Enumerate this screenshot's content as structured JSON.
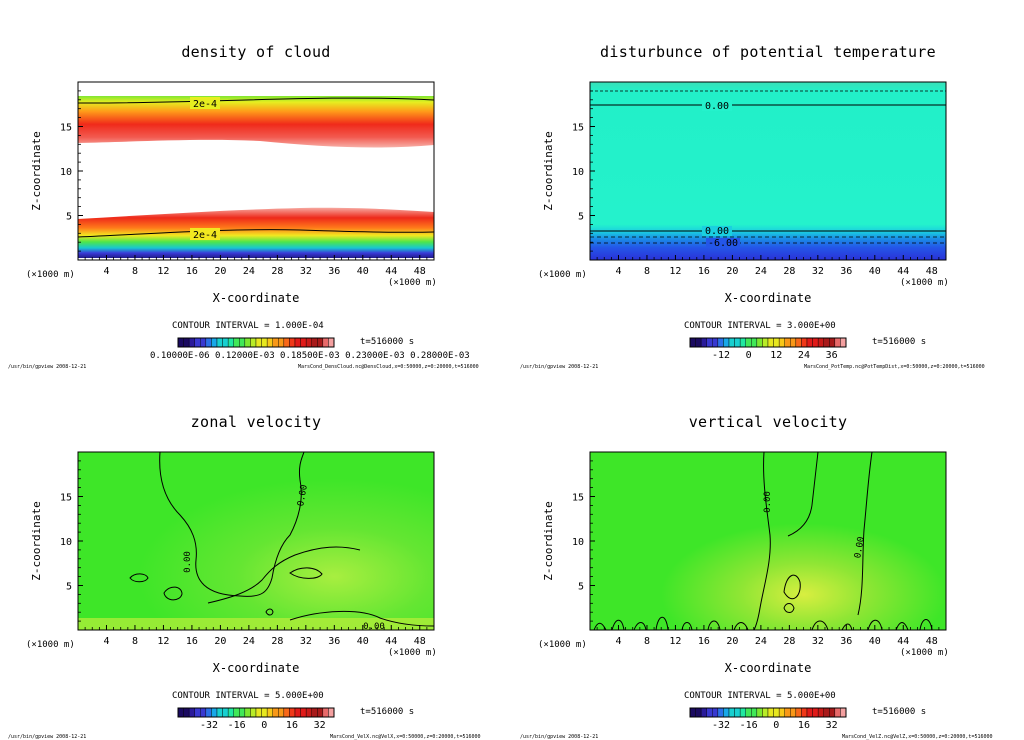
{
  "colors": {
    "frame": "#000000",
    "background": "#ffffff"
  },
  "panels": [
    {
      "id": "density",
      "title": "density of cloud",
      "ylabel": "Z-coordinate",
      "xlabel": "X-coordinate",
      "x_unit_left": "(×1000 m)",
      "x_unit_right": "(×1000 m)",
      "xticks": [
        "4",
        "8",
        "12",
        "16",
        "20",
        "24",
        "28",
        "32",
        "36",
        "40",
        "44",
        "48"
      ],
      "yticks": [
        "5",
        "10",
        "15"
      ],
      "contour_labels": [
        "2e-4",
        "2e-4"
      ],
      "contour_interval": "CONTOUR INTERVAL = 1.000E-04",
      "time": "t=516000 s",
      "colorbar_labels": "0.10000E-06 0.12000E-03 0.18500E-03 0.23000E-03 0.28000E-03",
      "footer_left": "/usr/bin/gpview   2008-12-21",
      "footer_right": "MarsCond_DensCloud.nc@DensCloud,x=0:50000,z=0:20000,t=516000"
    },
    {
      "id": "pottemp",
      "title": "disturbunce of potential temperature",
      "ylabel": "Z-coordinate",
      "xlabel": "X-coordinate",
      "x_unit_left": "(×1000 m)",
      "x_unit_right": "(×1000 m)",
      "xticks": [
        "4",
        "8",
        "12",
        "16",
        "20",
        "24",
        "28",
        "32",
        "36",
        "40",
        "44",
        "48"
      ],
      "yticks": [
        "5",
        "10",
        "15"
      ],
      "contour_labels": [
        "0.00",
        "0.00",
        "-6.00"
      ],
      "contour_interval": "CONTOUR INTERVAL = 3.000E+00",
      "time": "t=516000 s",
      "colorbar_ticks": [
        "-12",
        "0",
        "12",
        "24",
        "36"
      ],
      "footer_left": "/usr/bin/gpview   2008-12-21",
      "footer_right": "MarsCond_PotTemp.nc@PotTempDist,x=0:50000,z=0:20000,t=516000"
    },
    {
      "id": "velx",
      "title": "zonal velocity",
      "ylabel": "Z-coordinate",
      "xlabel": "X-coordinate",
      "x_unit_left": "(×1000 m)",
      "x_unit_right": "(×1000 m)",
      "xticks": [
        "4",
        "8",
        "12",
        "16",
        "20",
        "24",
        "28",
        "32",
        "36",
        "40",
        "44",
        "48"
      ],
      "yticks": [
        "5",
        "10",
        "15"
      ],
      "contour_labels": [
        "0.00",
        "0.00",
        "0.00"
      ],
      "contour_interval": "CONTOUR INTERVAL = 5.000E+00",
      "time": "t=516000 s",
      "colorbar_ticks": [
        "-32",
        "-16",
        "0",
        "16",
        "32"
      ],
      "footer_left": "/usr/bin/gpview   2008-12-21",
      "footer_right": "MarsCond_VelX.nc@VelX,x=0:50000,z=0:20000,t=516000"
    },
    {
      "id": "velz",
      "title": "vertical velocity",
      "ylabel": "Z-coordinate",
      "xlabel": "X-coordinate",
      "x_unit_left": "(×1000 m)",
      "x_unit_right": "(×1000 m)",
      "xticks": [
        "4",
        "8",
        "12",
        "16",
        "20",
        "24",
        "28",
        "32",
        "36",
        "40",
        "44",
        "48"
      ],
      "yticks": [
        "5",
        "10",
        "15"
      ],
      "contour_labels": [
        "0.00",
        "0.00"
      ],
      "contour_interval": "CONTOUR INTERVAL = 5.000E+00",
      "time": "t=516000 s",
      "colorbar_ticks": [
        "-32",
        "-16",
        "0",
        "16",
        "32"
      ],
      "footer_left": "/usr/bin/gpview   2008-12-21",
      "footer_right": "MarsCond_VelZ.nc@VelZ,x=0:50000,z=0:20000,t=516000"
    }
  ],
  "chart_data": [
    {
      "type": "heatmap",
      "title": "density of cloud",
      "xlabel": "X-coordinate",
      "ylabel": "Z-coordinate",
      "xlim": [
        0,
        50
      ],
      "ylim": [
        0,
        20
      ],
      "xticks": [
        4,
        8,
        12,
        16,
        20,
        24,
        28,
        32,
        36,
        40,
        44,
        48
      ],
      "yticks": [
        5,
        10,
        15
      ],
      "contour_levels_labeled": [
        "2e-4",
        "2e-4"
      ],
      "contour_interval": 0.0001,
      "colorbar": {
        "labels": [
          "0.10000E-06",
          "0.12000E-03",
          "0.18500E-03",
          "0.23000E-03",
          "0.28000E-03"
        ]
      },
      "time_s": 516000
    },
    {
      "type": "heatmap",
      "title": "disturbunce of potential temperature",
      "xlabel": "X-coordinate",
      "ylabel": "Z-coordinate",
      "xlim": [
        0,
        50
      ],
      "ylim": [
        0,
        20
      ],
      "xticks": [
        4,
        8,
        12,
        16,
        20,
        24,
        28,
        32,
        36,
        40,
        44,
        48
      ],
      "yticks": [
        5,
        10,
        15
      ],
      "contour_levels_labeled": [
        0.0,
        0.0,
        -6.0
      ],
      "contour_interval": 3.0,
      "colorbar": {
        "ticks": [
          -12,
          0,
          12,
          24,
          36
        ]
      },
      "time_s": 516000
    },
    {
      "type": "heatmap",
      "title": "zonal velocity",
      "xlabel": "X-coordinate",
      "ylabel": "Z-coordinate",
      "xlim": [
        0,
        50
      ],
      "ylim": [
        0,
        20
      ],
      "xticks": [
        4,
        8,
        12,
        16,
        20,
        24,
        28,
        32,
        36,
        40,
        44,
        48
      ],
      "yticks": [
        5,
        10,
        15
      ],
      "contour_levels_labeled": [
        0.0,
        0.0,
        0.0
      ],
      "contour_interval": 5.0,
      "colorbar": {
        "ticks": [
          -32,
          -16,
          0,
          16,
          32
        ]
      },
      "time_s": 516000
    },
    {
      "type": "heatmap",
      "title": "vertical velocity",
      "xlabel": "X-coordinate",
      "ylabel": "Z-coordinate",
      "xlim": [
        0,
        50
      ],
      "ylim": [
        0,
        20
      ],
      "xticks": [
        4,
        8,
        12,
        16,
        20,
        24,
        28,
        32,
        36,
        40,
        44,
        48
      ],
      "yticks": [
        5,
        10,
        15
      ],
      "contour_levels_labeled": [
        0.0,
        0.0
      ],
      "contour_interval": 5.0,
      "colorbar": {
        "ticks": [
          -32,
          -16,
          0,
          16,
          32
        ]
      },
      "time_s": 516000
    }
  ]
}
